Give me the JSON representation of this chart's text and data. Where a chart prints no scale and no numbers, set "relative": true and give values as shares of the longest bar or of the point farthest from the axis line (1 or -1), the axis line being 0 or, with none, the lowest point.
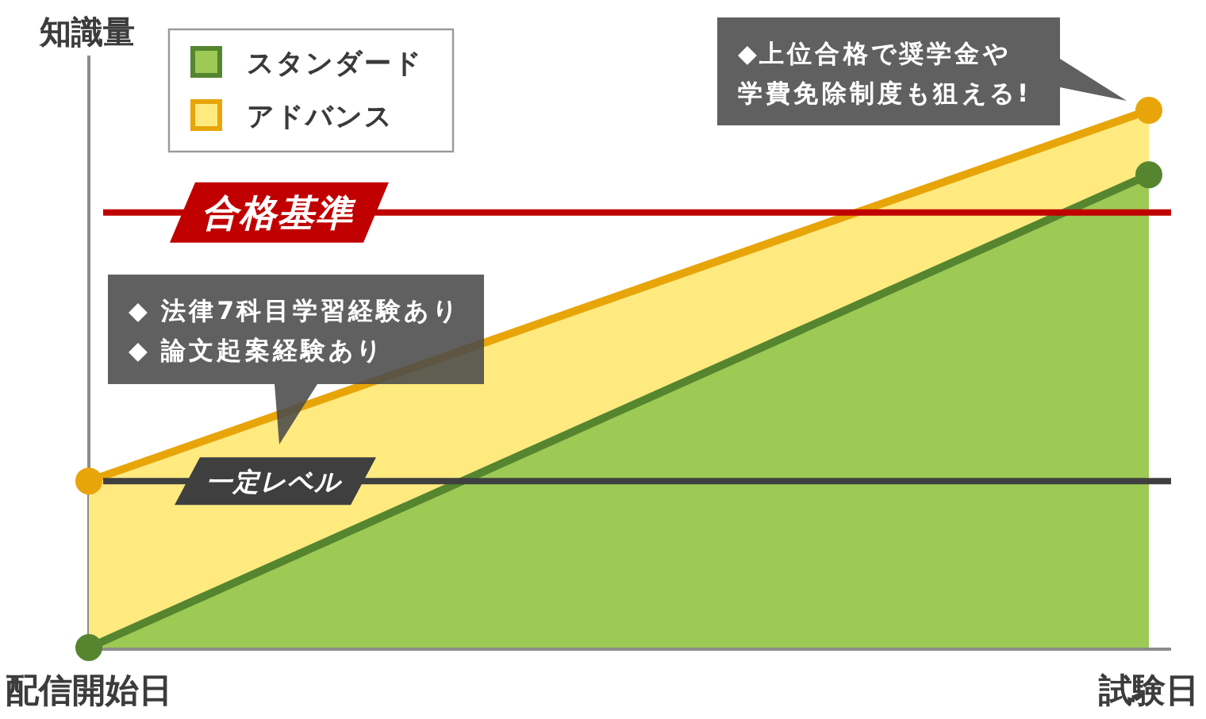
{
  "chart_data": {
    "type": "area",
    "ylabel": "知識量",
    "categories": [
      "配信開始日",
      "試験日"
    ],
    "relative": true,
    "series": [
      {
        "name": "スタンダード",
        "color": "#9dc955",
        "values": [
          0,
          0.88
        ]
      },
      {
        "name": "アドバンス",
        "color": "#ffea80",
        "values": [
          0.31,
          1
        ]
      }
    ],
    "ref_lines": [
      {
        "axis": "y",
        "value": 0.81,
        "label": "合格基準",
        "color": "#c00000"
      },
      {
        "axis": "y",
        "value": 0.31,
        "label": "一定レベル",
        "color": "#3f3f3f"
      }
    ],
    "annotations": [
      "◆ 法律7科目学習経験あり",
      "◆ 論文起案経験あり",
      "◆上位合格で奨学金や学費免除制度も狙える!"
    ],
    "legend": "top left",
    "marker": "circle"
  }
}
